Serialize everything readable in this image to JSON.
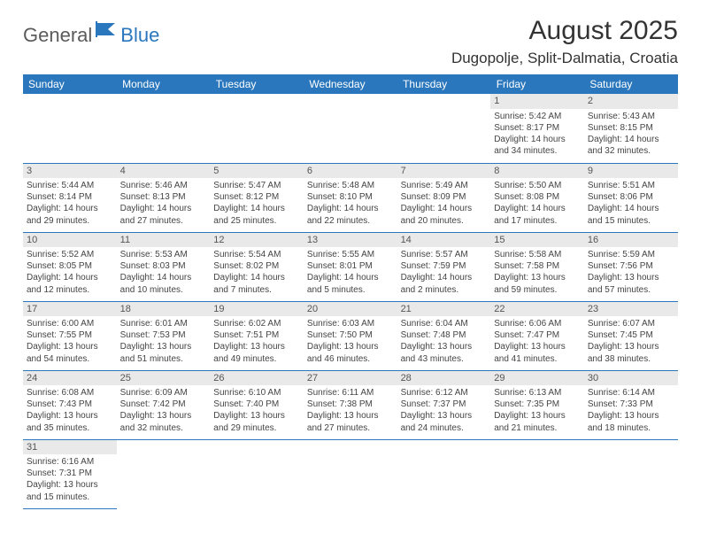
{
  "logo": {
    "word1": "General",
    "word2": "Blue"
  },
  "title": "August 2025",
  "location": "Dugopolje, Split-Dalmatia, Croatia",
  "colors": {
    "header_bg": "#2a77bd",
    "header_text": "#ffffff",
    "daynum_bg": "#e9e9e9",
    "border": "#2a77bd",
    "logo_dark": "#5b5b5b",
    "logo_blue": "#2a77bd"
  },
  "day_headers": [
    "Sunday",
    "Monday",
    "Tuesday",
    "Wednesday",
    "Thursday",
    "Friday",
    "Saturday"
  ],
  "weeks": [
    [
      null,
      null,
      null,
      null,
      null,
      {
        "n": "1",
        "sr": "Sunrise: 5:42 AM",
        "ss": "Sunset: 8:17 PM",
        "d1": "Daylight: 14 hours",
        "d2": "and 34 minutes."
      },
      {
        "n": "2",
        "sr": "Sunrise: 5:43 AM",
        "ss": "Sunset: 8:15 PM",
        "d1": "Daylight: 14 hours",
        "d2": "and 32 minutes."
      }
    ],
    [
      {
        "n": "3",
        "sr": "Sunrise: 5:44 AM",
        "ss": "Sunset: 8:14 PM",
        "d1": "Daylight: 14 hours",
        "d2": "and 29 minutes."
      },
      {
        "n": "4",
        "sr": "Sunrise: 5:46 AM",
        "ss": "Sunset: 8:13 PM",
        "d1": "Daylight: 14 hours",
        "d2": "and 27 minutes."
      },
      {
        "n": "5",
        "sr": "Sunrise: 5:47 AM",
        "ss": "Sunset: 8:12 PM",
        "d1": "Daylight: 14 hours",
        "d2": "and 25 minutes."
      },
      {
        "n": "6",
        "sr": "Sunrise: 5:48 AM",
        "ss": "Sunset: 8:10 PM",
        "d1": "Daylight: 14 hours",
        "d2": "and 22 minutes."
      },
      {
        "n": "7",
        "sr": "Sunrise: 5:49 AM",
        "ss": "Sunset: 8:09 PM",
        "d1": "Daylight: 14 hours",
        "d2": "and 20 minutes."
      },
      {
        "n": "8",
        "sr": "Sunrise: 5:50 AM",
        "ss": "Sunset: 8:08 PM",
        "d1": "Daylight: 14 hours",
        "d2": "and 17 minutes."
      },
      {
        "n": "9",
        "sr": "Sunrise: 5:51 AM",
        "ss": "Sunset: 8:06 PM",
        "d1": "Daylight: 14 hours",
        "d2": "and 15 minutes."
      }
    ],
    [
      {
        "n": "10",
        "sr": "Sunrise: 5:52 AM",
        "ss": "Sunset: 8:05 PM",
        "d1": "Daylight: 14 hours",
        "d2": "and 12 minutes."
      },
      {
        "n": "11",
        "sr": "Sunrise: 5:53 AM",
        "ss": "Sunset: 8:03 PM",
        "d1": "Daylight: 14 hours",
        "d2": "and 10 minutes."
      },
      {
        "n": "12",
        "sr": "Sunrise: 5:54 AM",
        "ss": "Sunset: 8:02 PM",
        "d1": "Daylight: 14 hours",
        "d2": "and 7 minutes."
      },
      {
        "n": "13",
        "sr": "Sunrise: 5:55 AM",
        "ss": "Sunset: 8:01 PM",
        "d1": "Daylight: 14 hours",
        "d2": "and 5 minutes."
      },
      {
        "n": "14",
        "sr": "Sunrise: 5:57 AM",
        "ss": "Sunset: 7:59 PM",
        "d1": "Daylight: 14 hours",
        "d2": "and 2 minutes."
      },
      {
        "n": "15",
        "sr": "Sunrise: 5:58 AM",
        "ss": "Sunset: 7:58 PM",
        "d1": "Daylight: 13 hours",
        "d2": "and 59 minutes."
      },
      {
        "n": "16",
        "sr": "Sunrise: 5:59 AM",
        "ss": "Sunset: 7:56 PM",
        "d1": "Daylight: 13 hours",
        "d2": "and 57 minutes."
      }
    ],
    [
      {
        "n": "17",
        "sr": "Sunrise: 6:00 AM",
        "ss": "Sunset: 7:55 PM",
        "d1": "Daylight: 13 hours",
        "d2": "and 54 minutes."
      },
      {
        "n": "18",
        "sr": "Sunrise: 6:01 AM",
        "ss": "Sunset: 7:53 PM",
        "d1": "Daylight: 13 hours",
        "d2": "and 51 minutes."
      },
      {
        "n": "19",
        "sr": "Sunrise: 6:02 AM",
        "ss": "Sunset: 7:51 PM",
        "d1": "Daylight: 13 hours",
        "d2": "and 49 minutes."
      },
      {
        "n": "20",
        "sr": "Sunrise: 6:03 AM",
        "ss": "Sunset: 7:50 PM",
        "d1": "Daylight: 13 hours",
        "d2": "and 46 minutes."
      },
      {
        "n": "21",
        "sr": "Sunrise: 6:04 AM",
        "ss": "Sunset: 7:48 PM",
        "d1": "Daylight: 13 hours",
        "d2": "and 43 minutes."
      },
      {
        "n": "22",
        "sr": "Sunrise: 6:06 AM",
        "ss": "Sunset: 7:47 PM",
        "d1": "Daylight: 13 hours",
        "d2": "and 41 minutes."
      },
      {
        "n": "23",
        "sr": "Sunrise: 6:07 AM",
        "ss": "Sunset: 7:45 PM",
        "d1": "Daylight: 13 hours",
        "d2": "and 38 minutes."
      }
    ],
    [
      {
        "n": "24",
        "sr": "Sunrise: 6:08 AM",
        "ss": "Sunset: 7:43 PM",
        "d1": "Daylight: 13 hours",
        "d2": "and 35 minutes."
      },
      {
        "n": "25",
        "sr": "Sunrise: 6:09 AM",
        "ss": "Sunset: 7:42 PM",
        "d1": "Daylight: 13 hours",
        "d2": "and 32 minutes."
      },
      {
        "n": "26",
        "sr": "Sunrise: 6:10 AM",
        "ss": "Sunset: 7:40 PM",
        "d1": "Daylight: 13 hours",
        "d2": "and 29 minutes."
      },
      {
        "n": "27",
        "sr": "Sunrise: 6:11 AM",
        "ss": "Sunset: 7:38 PM",
        "d1": "Daylight: 13 hours",
        "d2": "and 27 minutes."
      },
      {
        "n": "28",
        "sr": "Sunrise: 6:12 AM",
        "ss": "Sunset: 7:37 PM",
        "d1": "Daylight: 13 hours",
        "d2": "and 24 minutes."
      },
      {
        "n": "29",
        "sr": "Sunrise: 6:13 AM",
        "ss": "Sunset: 7:35 PM",
        "d1": "Daylight: 13 hours",
        "d2": "and 21 minutes."
      },
      {
        "n": "30",
        "sr": "Sunrise: 6:14 AM",
        "ss": "Sunset: 7:33 PM",
        "d1": "Daylight: 13 hours",
        "d2": "and 18 minutes."
      }
    ],
    [
      {
        "n": "31",
        "sr": "Sunrise: 6:16 AM",
        "ss": "Sunset: 7:31 PM",
        "d1": "Daylight: 13 hours",
        "d2": "and 15 minutes."
      },
      null,
      null,
      null,
      null,
      null,
      null
    ]
  ]
}
